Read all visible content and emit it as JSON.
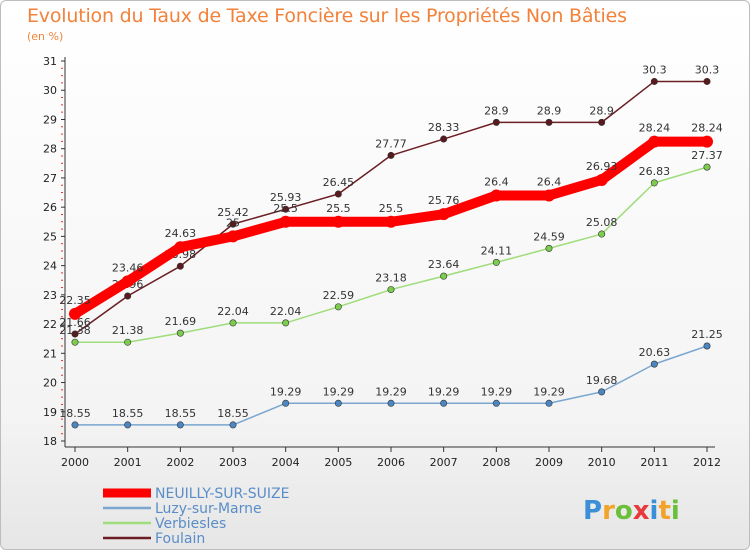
{
  "title": "Evolution du Taux de Taxe Foncière sur les Propriétés Non Bâties",
  "subtitle": "(en %)",
  "logo": {
    "text": "Proxiti"
  },
  "chart_data": {
    "type": "line",
    "title": "Evolution du Taux de Taxe Foncière sur les Propriétés Non Bâties",
    "ylabel": "(en %)",
    "xlabel": "",
    "ylim": [
      18,
      31
    ],
    "yticks": [
      18,
      19,
      20,
      21,
      22,
      23,
      24,
      25,
      26,
      27,
      28,
      29,
      30,
      31
    ],
    "grid": false,
    "legend_position": "bottom-left",
    "x": [
      "2000",
      "2001",
      "2002",
      "2003",
      "2004",
      "2005",
      "2006",
      "2007",
      "2008",
      "2009",
      "2010",
      "2011",
      "2012"
    ],
    "series": [
      {
        "name": "Foulain",
        "color": "#6b1f24",
        "marker": "#5a1a1d",
        "values": [
          21.66,
          22.96,
          23.98,
          25.42,
          25.93,
          26.45,
          27.77,
          28.33,
          28.9,
          28.9,
          28.9,
          30.3,
          30.3
        ],
        "labels": [
          "21.66",
          "22.96",
          "23.98",
          "25.42",
          "25.93",
          "26.45",
          "27.77",
          "28.33",
          "28.9",
          "28.9",
          "28.9",
          "30.3",
          "30.3"
        ]
      },
      {
        "name": "Verbiesles",
        "color": "#9fdc7a",
        "marker": "#7ccc4e",
        "values": [
          21.38,
          21.38,
          21.69,
          22.04,
          22.04,
          22.59,
          23.18,
          23.64,
          24.11,
          24.59,
          25.08,
          26.83,
          27.37
        ],
        "labels": [
          "21.38",
          "21.38",
          "21.69",
          "22.04",
          "22.04",
          "22.59",
          "23.18",
          "23.64",
          "24.11",
          "24.59",
          "25.08",
          "26.83",
          "27.37"
        ]
      },
      {
        "name": "Luzy-sur-Marne",
        "color": "#7aa6cf",
        "marker": "#4b86c2",
        "values": [
          18.55,
          18.55,
          18.55,
          18.55,
          19.29,
          19.29,
          19.29,
          19.29,
          19.29,
          19.29,
          19.68,
          20.63,
          21.25
        ],
        "labels": [
          "18.55",
          "18.55",
          "18.55",
          "18.55",
          "19.29",
          "19.29",
          "19.29",
          "19.29",
          "19.29",
          "19.29",
          "19.68",
          "20.63",
          "21.25"
        ]
      },
      {
        "name": "NEUILLY-SUR-SUIZE",
        "color": "#ff0000",
        "marker": "#ff0000",
        "values": [
          22.35,
          23.46,
          24.63,
          25.0,
          25.5,
          25.5,
          25.5,
          25.76,
          26.4,
          26.4,
          26.93,
          28.24,
          28.24
        ],
        "labels": [
          "22.35",
          "23.46",
          "24.63",
          "25",
          "25.5",
          "25.5",
          "25.5",
          "25.76",
          "26.4",
          "26.4",
          "26.93",
          "28.24",
          "28.24"
        ]
      }
    ],
    "legend_order": [
      "NEUILLY-SUR-SUIZE",
      "Luzy-sur-Marne",
      "Verbiesles",
      "Foulain"
    ]
  }
}
